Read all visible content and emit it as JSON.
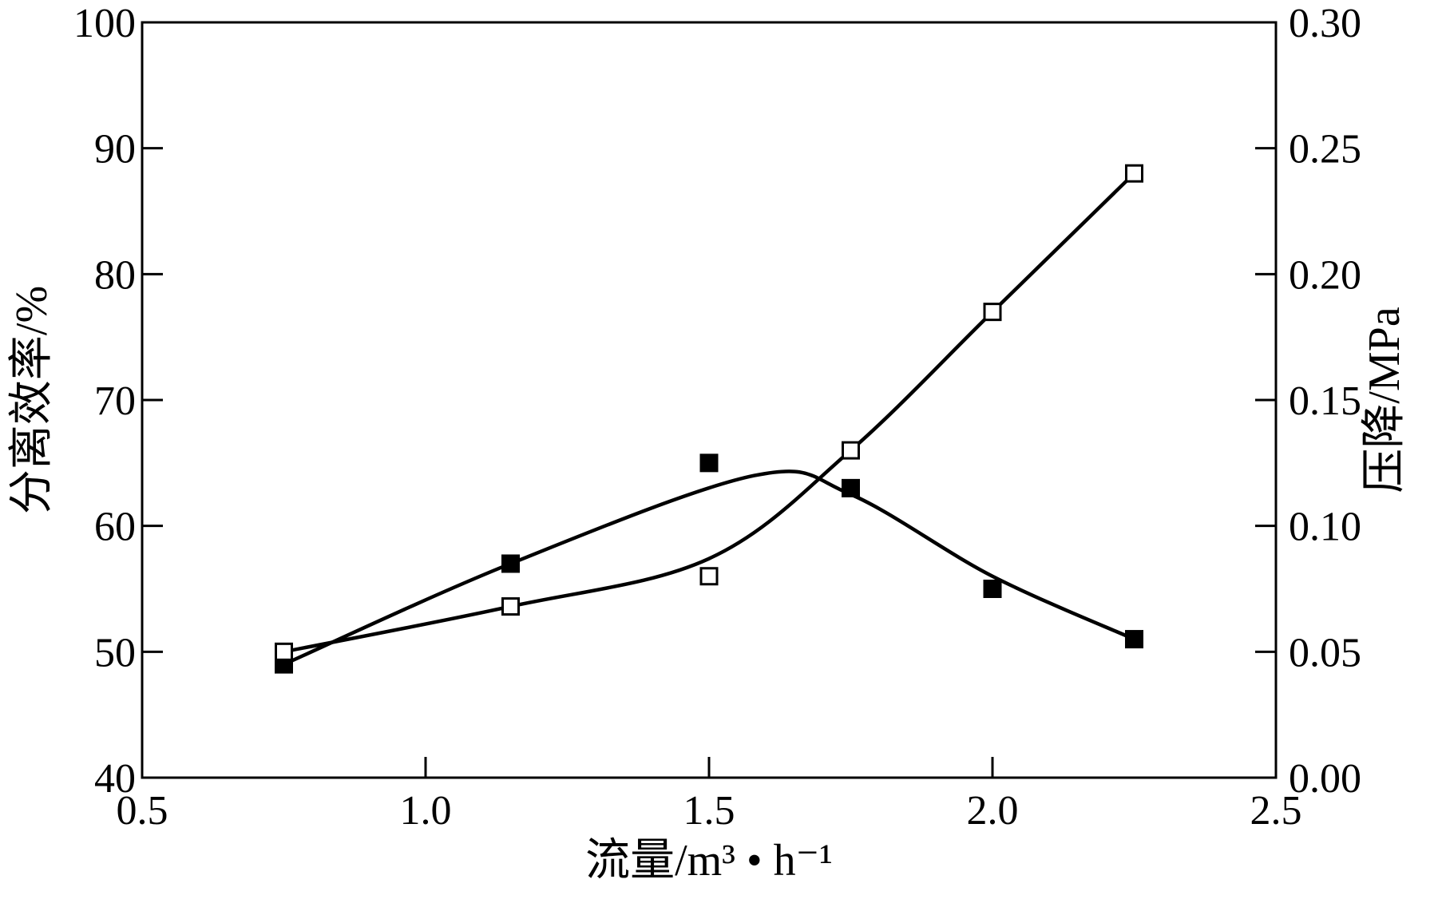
{
  "chart_data": {
    "type": "line",
    "xlabel": "流量/m³ • h⁻¹",
    "ylabel_left": "分离效率/%",
    "ylabel_right": "压降/MPa",
    "xlim": [
      0.5,
      2.5
    ],
    "ylim_left": [
      40,
      100
    ],
    "ylim_right": [
      0.0,
      0.3
    ],
    "x_ticks": [
      "0.5",
      "1.0",
      "1.5",
      "2.0",
      "2.5"
    ],
    "y_left_ticks": [
      "40",
      "50",
      "60",
      "70",
      "80",
      "90",
      "100"
    ],
    "y_right_ticks": [
      "0.00",
      "0.05",
      "0.10",
      "0.15",
      "0.20",
      "0.25",
      "0.30"
    ],
    "grid": false,
    "legend": "none",
    "series": [
      {
        "marker": "filled-square",
        "axis": "left",
        "color": "#000000",
        "points": [
          [
            0.75,
            49.0
          ],
          [
            1.15,
            57.0
          ],
          [
            1.5,
            65.0
          ],
          [
            1.75,
            63.0
          ],
          [
            2.0,
            55.0
          ],
          [
            2.25,
            51.0
          ]
        ],
        "curve": [
          [
            0.75,
            49.0
          ],
          [
            1.15,
            57.0
          ],
          [
            1.58,
            64.0
          ],
          [
            1.75,
            62.5
          ],
          [
            2.0,
            56.0
          ],
          [
            2.25,
            51.0
          ]
        ]
      },
      {
        "marker": "open-square",
        "axis": "right",
        "color": "#000000",
        "points": [
          [
            0.75,
            0.05
          ],
          [
            1.15,
            0.068
          ],
          [
            1.5,
            0.08
          ],
          [
            1.75,
            0.13
          ],
          [
            2.0,
            0.185
          ],
          [
            2.25,
            0.24
          ]
        ],
        "curve": [
          [
            0.75,
            0.05
          ],
          [
            1.15,
            0.068
          ],
          [
            1.5,
            0.087
          ],
          [
            1.75,
            0.13
          ],
          [
            2.0,
            0.185
          ],
          [
            2.25,
            0.24
          ]
        ]
      }
    ]
  }
}
